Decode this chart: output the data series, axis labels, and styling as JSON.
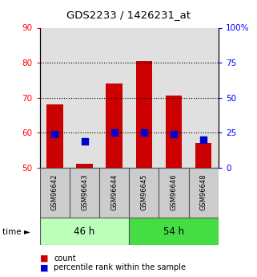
{
  "title": "GDS2233 / 1426231_at",
  "categories": [
    "GSM96642",
    "GSM96643",
    "GSM96644",
    "GSM96645",
    "GSM96646",
    "GSM96648"
  ],
  "count_values": [
    68,
    51,
    74,
    80.5,
    70.5,
    57
  ],
  "percentile_values": [
    24,
    19,
    25,
    25,
    24,
    20
  ],
  "ylim_left": [
    50,
    90
  ],
  "ylim_right": [
    0,
    100
  ],
  "yticks_left": [
    50,
    60,
    70,
    80,
    90
  ],
  "yticks_right": [
    0,
    25,
    50,
    75,
    100
  ],
  "yticklabels_right": [
    "0",
    "25",
    "50",
    "75",
    "100%"
  ],
  "bar_color": "#cc0000",
  "dot_color": "#0000cc",
  "group_labels": [
    "46 h",
    "54 h"
  ],
  "group_colors": [
    "#bbffbb",
    "#44dd44"
  ],
  "bar_width": 0.55,
  "dot_size": 28,
  "gridcolor": "black",
  "legend_items": [
    "count",
    "percentile rank within the sample"
  ],
  "time_label": "time ►"
}
